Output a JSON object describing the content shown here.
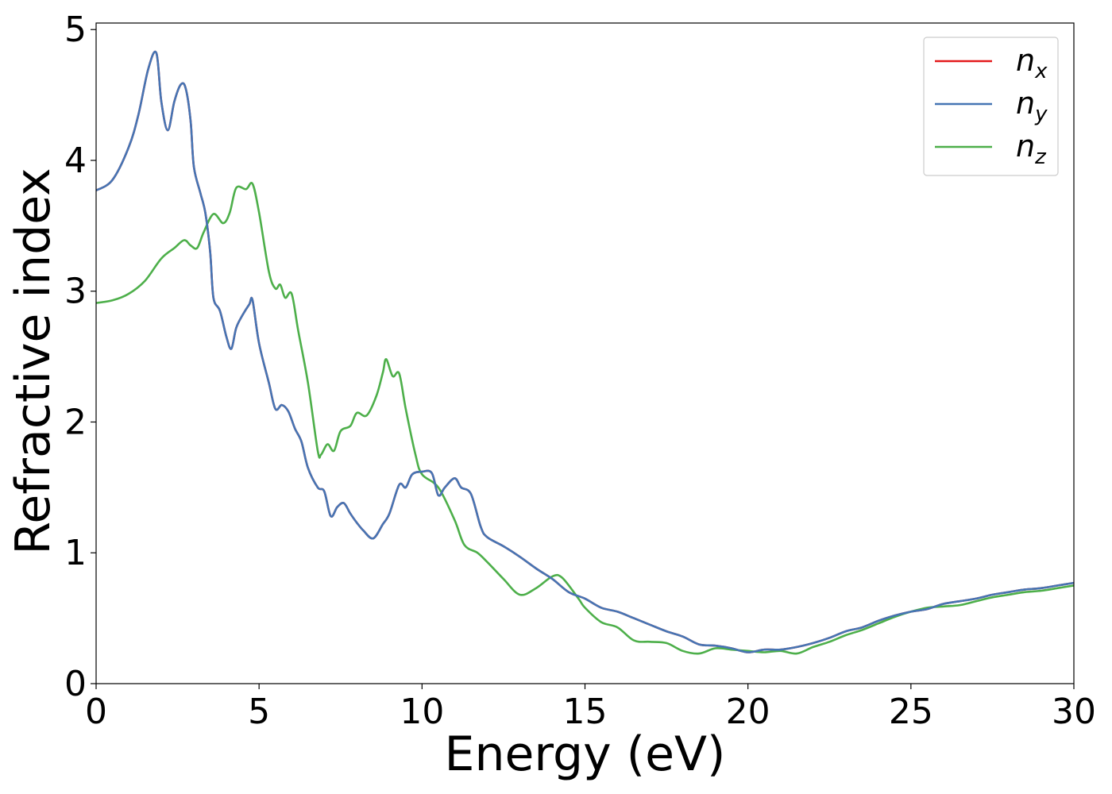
{
  "chart_data": {
    "type": "line",
    "title": "",
    "xlabel": "Energy (eV)",
    "ylabel": "Refractive index",
    "xlim": [
      0,
      30
    ],
    "ylim": [
      0,
      5.05
    ],
    "xticks": [
      0,
      5,
      10,
      15,
      20,
      25,
      30
    ],
    "yticks": [
      0,
      1,
      2,
      3,
      4,
      5
    ],
    "grid": false,
    "legend_position": "top-right",
    "series": [
      {
        "name": "n_x",
        "label_main": "n",
        "label_sub": "x",
        "color": "#e41a1c",
        "x": [
          0,
          0.5,
          1.0,
          1.3,
          1.6,
          1.85,
          2.0,
          2.2,
          2.4,
          2.6,
          2.75,
          2.9,
          3.0,
          3.2,
          3.35,
          3.5,
          3.6,
          3.8,
          4.0,
          4.15,
          4.3,
          4.5,
          4.7,
          4.8,
          5.0,
          5.3,
          5.5,
          5.7,
          5.9,
          6.1,
          6.3,
          6.5,
          6.8,
          7.0,
          7.2,
          7.4,
          7.6,
          7.8,
          8.0,
          8.2,
          8.5,
          8.8,
          9.0,
          9.3,
          9.5,
          9.7,
          10.0,
          10.3,
          10.5,
          10.7,
          11.0,
          11.2,
          11.5,
          11.8,
          12.0,
          12.5,
          13.0,
          13.5,
          14.0,
          14.5,
          15.0,
          15.5,
          16.0,
          16.5,
          17.0,
          17.5,
          18.0,
          18.5,
          19.0,
          19.5,
          20.0,
          20.5,
          21.0,
          21.5,
          22.0,
          22.5,
          23.0,
          23.5,
          24.0,
          24.5,
          25.0,
          25.5,
          26.0,
          26.5,
          27.0,
          27.5,
          28.0,
          28.5,
          29.0,
          29.5,
          30.0
        ],
        "y": [
          3.77,
          3.85,
          4.1,
          4.35,
          4.7,
          4.82,
          4.45,
          4.23,
          4.45,
          4.58,
          4.55,
          4.3,
          3.95,
          3.75,
          3.6,
          3.3,
          2.95,
          2.85,
          2.65,
          2.56,
          2.72,
          2.82,
          2.9,
          2.93,
          2.6,
          2.3,
          2.1,
          2.13,
          2.08,
          1.95,
          1.85,
          1.65,
          1.5,
          1.47,
          1.28,
          1.35,
          1.38,
          1.3,
          1.23,
          1.17,
          1.11,
          1.22,
          1.3,
          1.52,
          1.5,
          1.6,
          1.62,
          1.61,
          1.44,
          1.5,
          1.57,
          1.5,
          1.45,
          1.2,
          1.12,
          1.05,
          0.97,
          0.88,
          0.8,
          0.7,
          0.65,
          0.58,
          0.55,
          0.5,
          0.45,
          0.4,
          0.36,
          0.3,
          0.29,
          0.27,
          0.24,
          0.26,
          0.26,
          0.28,
          0.31,
          0.35,
          0.4,
          0.43,
          0.48,
          0.52,
          0.55,
          0.57,
          0.61,
          0.63,
          0.65,
          0.68,
          0.7,
          0.72,
          0.73,
          0.75,
          0.77
        ]
      },
      {
        "name": "n_y",
        "label_main": "n",
        "label_sub": "y",
        "color": "#4575b4",
        "x": [
          0,
          0.5,
          1.0,
          1.3,
          1.6,
          1.85,
          2.0,
          2.2,
          2.4,
          2.6,
          2.75,
          2.9,
          3.0,
          3.2,
          3.35,
          3.5,
          3.6,
          3.8,
          4.0,
          4.15,
          4.3,
          4.5,
          4.7,
          4.8,
          5.0,
          5.3,
          5.5,
          5.7,
          5.9,
          6.1,
          6.3,
          6.5,
          6.8,
          7.0,
          7.2,
          7.4,
          7.6,
          7.8,
          8.0,
          8.2,
          8.5,
          8.8,
          9.0,
          9.3,
          9.5,
          9.7,
          10.0,
          10.3,
          10.5,
          10.7,
          11.0,
          11.2,
          11.5,
          11.8,
          12.0,
          12.5,
          13.0,
          13.5,
          14.0,
          14.5,
          15.0,
          15.5,
          16.0,
          16.5,
          17.0,
          17.5,
          18.0,
          18.5,
          19.0,
          19.5,
          20.0,
          20.5,
          21.0,
          21.5,
          22.0,
          22.5,
          23.0,
          23.5,
          24.0,
          24.5,
          25.0,
          25.5,
          26.0,
          26.5,
          27.0,
          27.5,
          28.0,
          28.5,
          29.0,
          29.5,
          30.0
        ],
        "y": [
          3.77,
          3.85,
          4.1,
          4.35,
          4.7,
          4.82,
          4.45,
          4.23,
          4.45,
          4.58,
          4.55,
          4.3,
          3.95,
          3.75,
          3.6,
          3.3,
          2.95,
          2.85,
          2.65,
          2.56,
          2.72,
          2.82,
          2.9,
          2.93,
          2.6,
          2.3,
          2.1,
          2.13,
          2.08,
          1.95,
          1.85,
          1.65,
          1.5,
          1.47,
          1.28,
          1.35,
          1.38,
          1.3,
          1.23,
          1.17,
          1.11,
          1.22,
          1.3,
          1.52,
          1.5,
          1.6,
          1.62,
          1.61,
          1.44,
          1.5,
          1.57,
          1.5,
          1.45,
          1.2,
          1.12,
          1.05,
          0.97,
          0.88,
          0.8,
          0.7,
          0.65,
          0.58,
          0.55,
          0.5,
          0.45,
          0.4,
          0.36,
          0.3,
          0.29,
          0.27,
          0.24,
          0.26,
          0.26,
          0.28,
          0.31,
          0.35,
          0.4,
          0.43,
          0.48,
          0.52,
          0.55,
          0.57,
          0.61,
          0.63,
          0.65,
          0.68,
          0.7,
          0.72,
          0.73,
          0.75,
          0.77
        ]
      },
      {
        "name": "n_z",
        "label_main": "n",
        "label_sub": "z",
        "color": "#4daf4a",
        "x": [
          0,
          0.5,
          1.0,
          1.5,
          2.0,
          2.4,
          2.7,
          2.9,
          3.1,
          3.3,
          3.6,
          3.9,
          4.1,
          4.3,
          4.6,
          4.8,
          5.0,
          5.3,
          5.5,
          5.65,
          5.8,
          6.0,
          6.2,
          6.5,
          6.8,
          6.9,
          7.1,
          7.3,
          7.5,
          7.8,
          8.0,
          8.3,
          8.6,
          8.8,
          8.9,
          9.1,
          9.3,
          9.5,
          9.8,
          10.0,
          10.5,
          11.0,
          11.3,
          11.7,
          12.0,
          12.5,
          13.0,
          13.5,
          14.0,
          14.3,
          14.8,
          15.0,
          15.5,
          16.0,
          16.5,
          17.0,
          17.5,
          18.0,
          18.5,
          19.0,
          19.5,
          20.0,
          20.5,
          21.0,
          21.5,
          22.0,
          22.5,
          23.0,
          23.5,
          24.0,
          24.5,
          25.0,
          25.5,
          26.0,
          26.5,
          27.0,
          27.5,
          28.0,
          28.5,
          29.0,
          29.5,
          30.0
        ],
        "y": [
          2.91,
          2.93,
          2.98,
          3.08,
          3.25,
          3.33,
          3.39,
          3.35,
          3.33,
          3.45,
          3.59,
          3.52,
          3.6,
          3.79,
          3.78,
          3.82,
          3.6,
          3.15,
          3.02,
          3.05,
          2.95,
          2.98,
          2.7,
          2.3,
          1.78,
          1.75,
          1.83,
          1.78,
          1.93,
          1.97,
          2.07,
          2.05,
          2.2,
          2.38,
          2.48,
          2.35,
          2.37,
          2.1,
          1.75,
          1.6,
          1.5,
          1.25,
          1.06,
          1.0,
          0.93,
          0.8,
          0.68,
          0.73,
          0.82,
          0.81,
          0.65,
          0.58,
          0.47,
          0.43,
          0.33,
          0.32,
          0.31,
          0.25,
          0.23,
          0.27,
          0.26,
          0.25,
          0.24,
          0.25,
          0.23,
          0.28,
          0.32,
          0.37,
          0.41,
          0.46,
          0.51,
          0.55,
          0.58,
          0.59,
          0.6,
          0.63,
          0.66,
          0.68,
          0.7,
          0.71,
          0.73,
          0.75
        ]
      }
    ]
  }
}
